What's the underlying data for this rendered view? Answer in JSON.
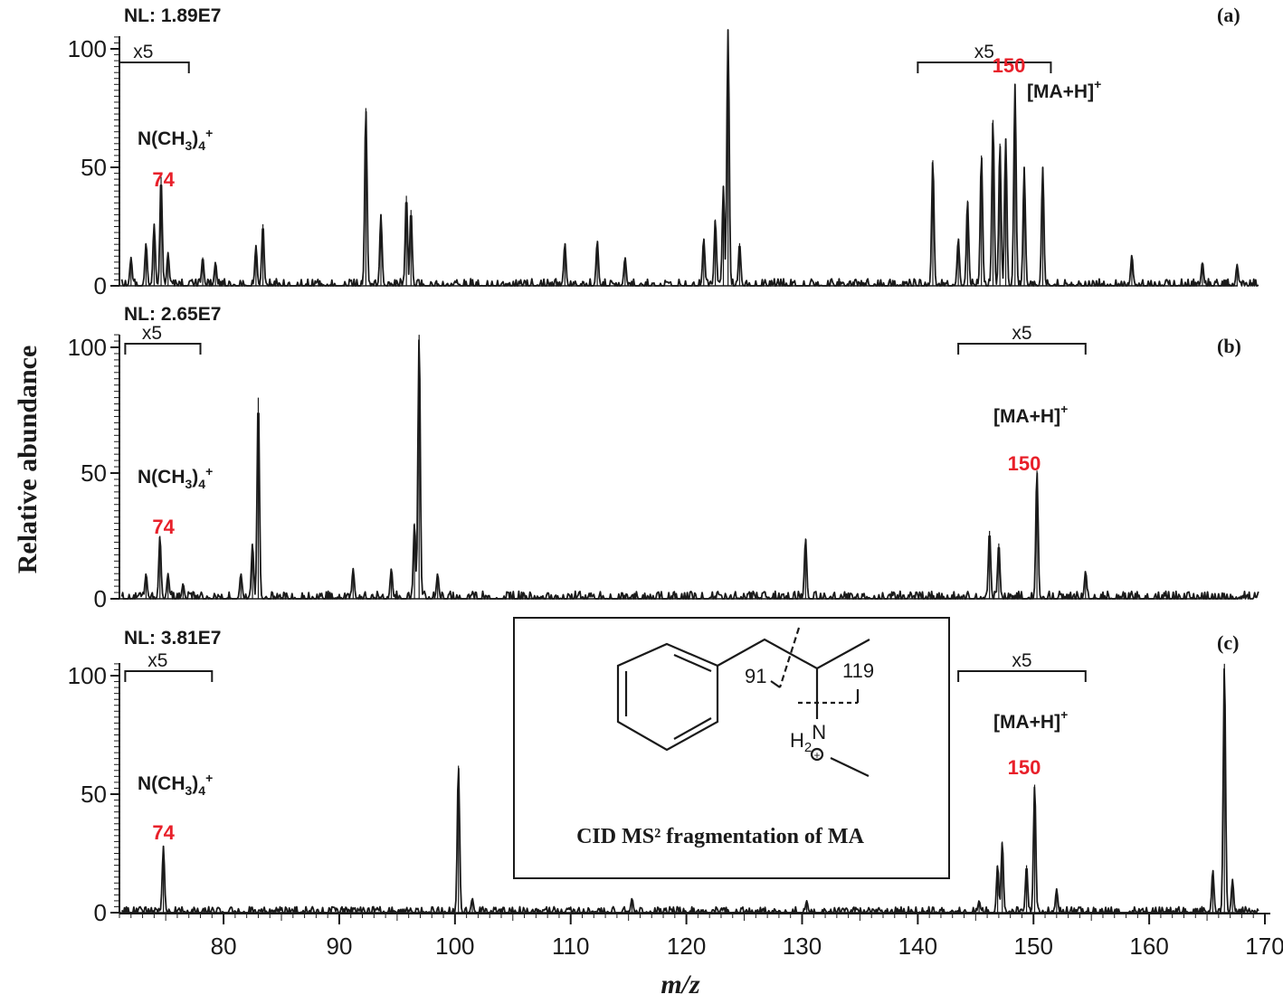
{
  "figure": {
    "xlabel": "m/z",
    "ylabel": "Relative abundance",
    "x_ticks": [
      80,
      90,
      100,
      110,
      120,
      130,
      140,
      150,
      160,
      170
    ],
    "y_ticks": [
      0,
      50,
      100
    ]
  },
  "inset": {
    "caption": "CID MS² fragmentation of MA",
    "label_91": "91",
    "label_119": "119",
    "label_h2n_h": "H",
    "label_h2n_sub": "2",
    "label_h2n_n": "N",
    "charge": "+"
  },
  "colors": {
    "accent_red": "#e8202a",
    "trace": "#1a1a1a"
  },
  "chart_data": [
    {
      "type": "line",
      "panel": "(a)",
      "nl": "NL: 1.89E7",
      "xlim": [
        71,
        170
      ],
      "ylim": [
        0,
        100
      ],
      "zoom_regions": [
        {
          "label": "x5",
          "from": 71,
          "to": 77
        },
        {
          "label": "x5",
          "from": 140,
          "to": 151.5
        }
      ],
      "annotations": [
        {
          "text": "N(CH3)4+",
          "x": 74.5
        },
        {
          "text": "74",
          "x": 74.5,
          "color": "red"
        },
        {
          "text": "[MA+H]+",
          "x": 149.5
        },
        {
          "text": "150",
          "x": 149.5,
          "color": "red"
        }
      ],
      "peaks": [
        [
          72,
          12
        ],
        [
          73.3,
          18
        ],
        [
          74,
          26
        ],
        [
          74.6,
          46
        ],
        [
          75.2,
          14
        ],
        [
          78.2,
          12
        ],
        [
          79.3,
          10
        ],
        [
          82.8,
          17
        ],
        [
          83.4,
          26
        ],
        [
          92.3,
          75
        ],
        [
          93.6,
          30
        ],
        [
          95.8,
          38
        ],
        [
          96.2,
          32
        ],
        [
          109.5,
          18
        ],
        [
          112.3,
          19
        ],
        [
          114.7,
          12
        ],
        [
          121.5,
          20
        ],
        [
          122.5,
          28
        ],
        [
          123.2,
          42
        ],
        [
          123.6,
          108
        ],
        [
          124.6,
          18
        ],
        [
          141.3,
          53
        ],
        [
          143.5,
          20
        ],
        [
          144.3,
          36
        ],
        [
          145.5,
          55
        ],
        [
          146.5,
          70
        ],
        [
          147.1,
          60
        ],
        [
          147.6,
          62
        ],
        [
          148.4,
          85
        ],
        [
          149.2,
          50
        ],
        [
          150.8,
          50
        ],
        [
          158.5,
          13
        ],
        [
          164.6,
          10
        ],
        [
          167.6,
          9
        ]
      ],
      "noise": 3
    },
    {
      "type": "line",
      "panel": "(b)",
      "nl": "NL:  2.65E7",
      "xlim": [
        71,
        170
      ],
      "ylim": [
        0,
        100
      ],
      "zoom_regions": [
        {
          "label": "x5",
          "from": 71.5,
          "to": 78
        },
        {
          "label": "x5",
          "from": 143.5,
          "to": 154.5
        }
      ],
      "annotations": [
        {
          "text": "N(CH3)4+",
          "x": 74.5
        },
        {
          "text": "74",
          "x": 74.5,
          "color": "red"
        },
        {
          "text": "[MA+H]+",
          "x": 150
        },
        {
          "text": "150",
          "x": 150,
          "color": "red"
        }
      ],
      "peaks": [
        [
          73.3,
          10
        ],
        [
          74.5,
          25
        ],
        [
          75.2,
          10
        ],
        [
          76.5,
          6
        ],
        [
          81.5,
          10
        ],
        [
          82.5,
          22
        ],
        [
          83,
          80
        ],
        [
          91.2,
          12
        ],
        [
          94.5,
          12
        ],
        [
          96.5,
          30
        ],
        [
          96.9,
          105
        ],
        [
          98.5,
          10
        ],
        [
          130.3,
          24
        ],
        [
          146.2,
          27
        ],
        [
          147,
          22
        ],
        [
          150.3,
          51
        ],
        [
          154.5,
          11
        ]
      ],
      "noise": 3
    },
    {
      "type": "line",
      "panel": "(c)",
      "nl": "NL:  3.81E7",
      "xlim": [
        71,
        170
      ],
      "ylim": [
        0,
        100
      ],
      "zoom_regions": [
        {
          "label": "x5",
          "from": 71.5,
          "to": 79
        },
        {
          "label": "x5",
          "from": 143.5,
          "to": 154.5
        }
      ],
      "annotations": [
        {
          "text": "N(CH3)4+",
          "x": 74.5
        },
        {
          "text": "74",
          "x": 74.5,
          "color": "red"
        },
        {
          "text": "[MA+H]+",
          "x": 150
        },
        {
          "text": "150",
          "x": 150,
          "color": "red"
        }
      ],
      "peaks": [
        [
          74.8,
          28
        ],
        [
          100.3,
          62
        ],
        [
          101.5,
          6
        ],
        [
          115.3,
          6
        ],
        [
          130.4,
          5
        ],
        [
          145.3,
          5
        ],
        [
          146.9,
          20
        ],
        [
          147.3,
          30
        ],
        [
          149.4,
          20
        ],
        [
          150.1,
          54
        ],
        [
          152,
          10
        ],
        [
          165.5,
          18
        ],
        [
          166.5,
          105
        ],
        [
          167.2,
          14
        ]
      ],
      "noise": 2.5
    }
  ]
}
